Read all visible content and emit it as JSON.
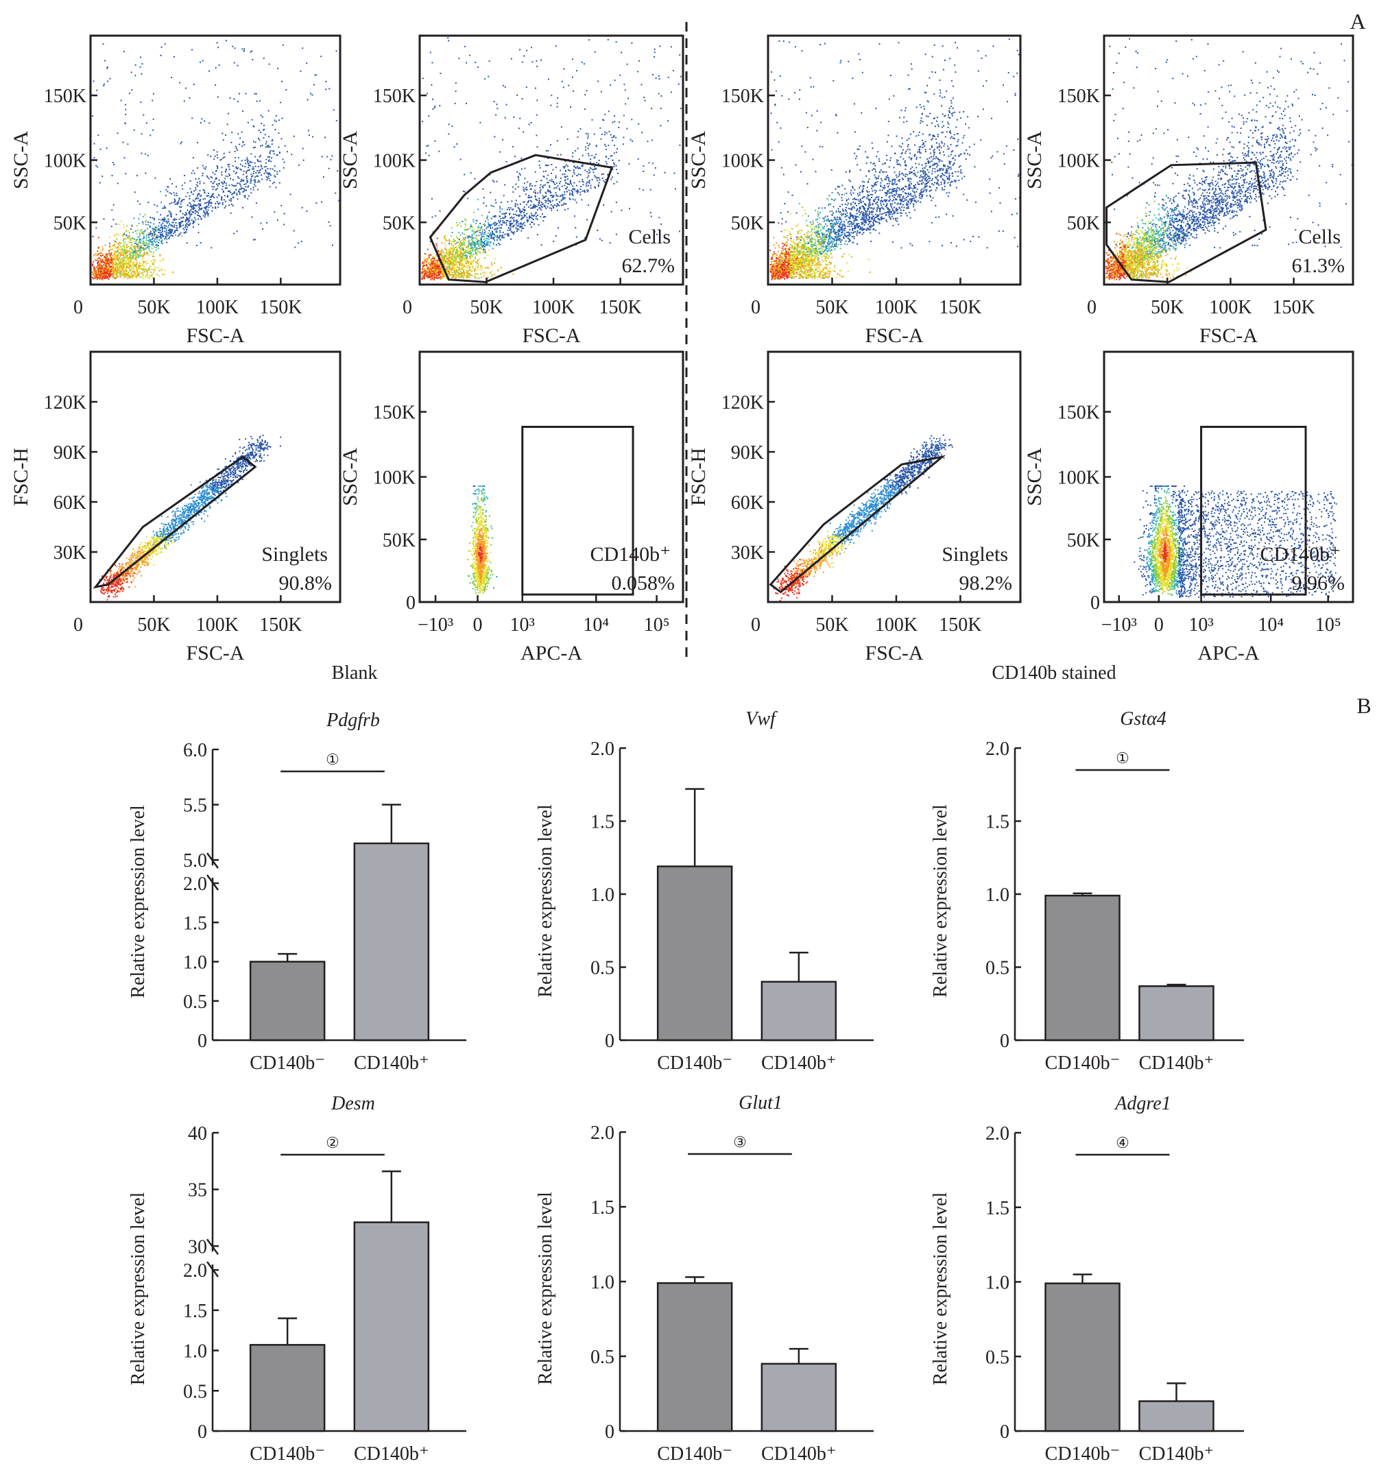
{
  "panel_labels": {
    "a": "A",
    "b": "B"
  },
  "group_labels": {
    "blank": "Blank",
    "stained": "CD140b stained"
  },
  "flow_panels": [
    {
      "id": "blank-fsc-ssc",
      "xlabel": "FSC-A",
      "ylabel": "SSC-A",
      "xticks": [
        "0",
        "50K",
        "100K",
        "150K"
      ],
      "yticks": [
        "50K",
        "100K",
        "150K"
      ],
      "gate": null,
      "gate_label": null,
      "gate_pct": null
    },
    {
      "id": "blank-cells-gate",
      "xlabel": "FSC-A",
      "ylabel": "SSC-A",
      "xticks": [
        "0",
        "50K",
        "100K",
        "150K"
      ],
      "yticks": [
        "50K",
        "100K",
        "150K"
      ],
      "gate": "polygon",
      "gate_label": "Cells",
      "gate_pct": "62.7%"
    },
    {
      "id": "stained-fsc-ssc",
      "xlabel": "FSC-A",
      "ylabel": "SSC-A",
      "xticks": [
        "0",
        "50K",
        "100K",
        "150K"
      ],
      "yticks": [
        "50K",
        "100K",
        "150K"
      ],
      "gate": null,
      "gate_label": null,
      "gate_pct": null
    },
    {
      "id": "stained-cells-gate",
      "xlabel": "FSC-A",
      "ylabel": "SSC-A",
      "xticks": [
        "0",
        "50K",
        "100K",
        "150K"
      ],
      "yticks": [
        "50K",
        "100K",
        "150K"
      ],
      "gate": "polygon",
      "gate_label": "Cells",
      "gate_pct": "61.3%"
    },
    {
      "id": "blank-singlets",
      "xlabel": "FSC-A",
      "ylabel": "FSC-H",
      "xticks": [
        "0",
        "50K",
        "100K",
        "150K"
      ],
      "yticks": [
        "30K",
        "60K",
        "90K",
        "120K"
      ],
      "gate": "polygon",
      "gate_label": "Singlets",
      "gate_pct": "90.8%"
    },
    {
      "id": "blank-apc",
      "xlabel": "APC-A",
      "ylabel": "SSC-A",
      "xticks": [
        "−10³",
        "0",
        "10³",
        "10⁴",
        "10⁵"
      ],
      "yticks": [
        "0",
        "50K",
        "100K",
        "150K"
      ],
      "gate": "rectangle",
      "gate_label": "CD140b⁺",
      "gate_pct": "0.058%"
    },
    {
      "id": "stained-singlets",
      "xlabel": "FSC-A",
      "ylabel": "FSC-H",
      "xticks": [
        "0",
        "50K",
        "100K",
        "150K"
      ],
      "yticks": [
        "30K",
        "60K",
        "90K",
        "120K"
      ],
      "gate": "polygon",
      "gate_label": "Singlets",
      "gate_pct": "98.2%"
    },
    {
      "id": "stained-apc",
      "xlabel": "APC-A",
      "ylabel": "SSC-A",
      "xticks": [
        "−10³",
        "0",
        "10³",
        "10⁴",
        "10⁵"
      ],
      "yticks": [
        "0",
        "50K",
        "100K",
        "150K"
      ],
      "gate": "rectangle",
      "gate_label": "CD140b⁺",
      "gate_pct": "9.96%"
    }
  ],
  "colors": {
    "neg_bar": "#8e8d8f",
    "pos_bar": "#a7a9b0",
    "axis": "#231f20"
  },
  "chart_data": [
    {
      "type": "bar",
      "title": "Pdgfrb",
      "ylabel": "Relative expression level",
      "categories": [
        "CD140b⁻",
        "CD140b⁺"
      ],
      "values": [
        1.0,
        5.15
      ],
      "errors": [
        0.1,
        0.35
      ],
      "ylim": [
        0,
        6.0
      ],
      "axis_break": {
        "lower_max": 2.0,
        "upper_min": 5.0
      },
      "yticks": [
        "0",
        "0.5",
        "1.0",
        "1.5",
        "2.0",
        "5.0",
        "5.5",
        "6.0"
      ],
      "significance": "①"
    },
    {
      "type": "bar",
      "title": "Vwf",
      "ylabel": "Relative expression level",
      "categories": [
        "CD140b⁻",
        "CD140b⁺"
      ],
      "values": [
        1.19,
        0.4
      ],
      "errors": [
        0.53,
        0.2
      ],
      "ylim": [
        0,
        2.0
      ],
      "axis_break": null,
      "yticks": [
        "0",
        "0.5",
        "1.0",
        "1.5",
        "2.0"
      ],
      "significance": null
    },
    {
      "type": "bar",
      "title": "Gstα4",
      "ylabel": "Relative expression level",
      "categories": [
        "CD140b⁻",
        "CD140b⁺"
      ],
      "values": [
        0.99,
        0.37
      ],
      "errors": [
        0.015,
        0.01
      ],
      "ylim": [
        0,
        2.0
      ],
      "axis_break": null,
      "yticks": [
        "0",
        "0.5",
        "1.0",
        "1.5",
        "2.0"
      ],
      "significance": "①"
    },
    {
      "type": "bar",
      "title": "Desm",
      "ylabel": "Relative expression level",
      "categories": [
        "CD140b⁻",
        "CD140b⁺"
      ],
      "values": [
        1.07,
        32.1
      ],
      "errors": [
        0.33,
        4.5
      ],
      "ylim": [
        0,
        40
      ],
      "axis_break": {
        "lower_max": 2.0,
        "upper_min": 30
      },
      "yticks": [
        "0",
        "0.5",
        "1.0",
        "1.5",
        "2.0",
        "30",
        "35",
        "40"
      ],
      "significance": "②"
    },
    {
      "type": "bar",
      "title": "Glut1",
      "ylabel": "Relative expression level",
      "categories": [
        "CD140b⁻",
        "CD140b⁺"
      ],
      "values": [
        0.99,
        0.45
      ],
      "errors": [
        0.04,
        0.1
      ],
      "ylim": [
        0,
        2.0
      ],
      "axis_break": null,
      "yticks": [
        "0",
        "0.5",
        "1.0",
        "1.5",
        "2.0"
      ],
      "significance": "③"
    },
    {
      "type": "bar",
      "title": "Adgre1",
      "ylabel": "Relative expression level",
      "categories": [
        "CD140b⁻",
        "CD140b⁺"
      ],
      "values": [
        0.99,
        0.2
      ],
      "errors": [
        0.06,
        0.12
      ],
      "ylim": [
        0,
        2.0
      ],
      "axis_break": null,
      "yticks": [
        "0",
        "0.5",
        "1.0",
        "1.5",
        "2.0"
      ],
      "significance": "④"
    }
  ]
}
